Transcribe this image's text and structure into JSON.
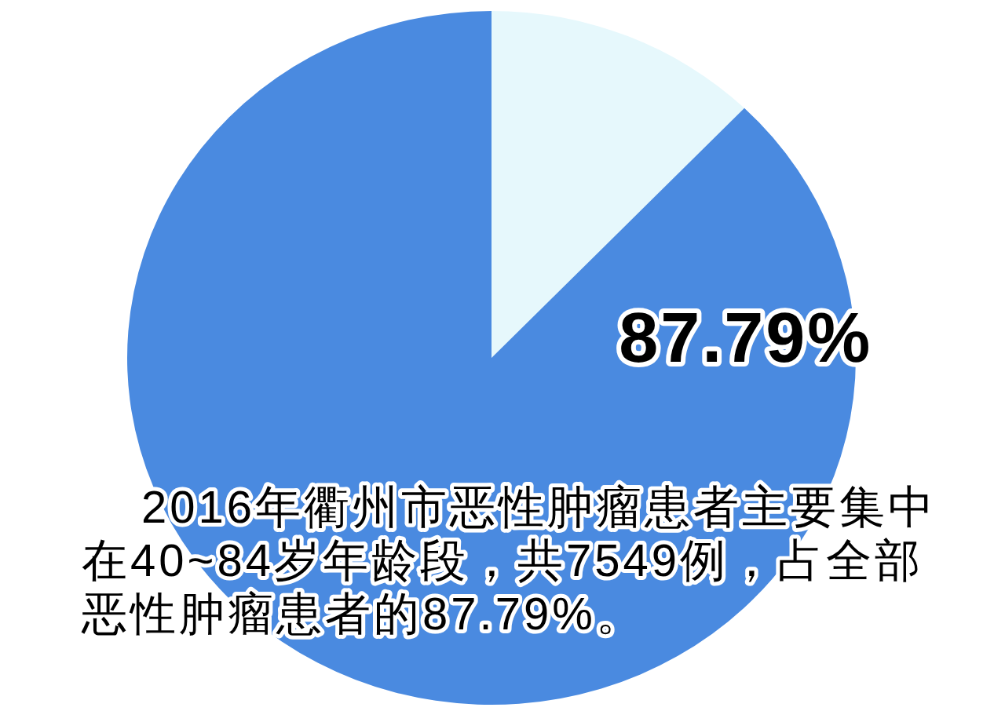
{
  "chart_data": {
    "type": "pie",
    "categories": [
      null,
      null
    ],
    "values": [
      12.21,
      87.79
    ],
    "colors": [
      "#e6f8fc",
      "#4a8ae0"
    ],
    "value_labels": [
      null,
      "87.79%"
    ],
    "annotations": [
      "2016年衢州市恶性肿瘤患者主要集中在40~84岁年龄段，共7549例，占全部恶性肿瘤患者的87.79%。"
    ]
  }
}
